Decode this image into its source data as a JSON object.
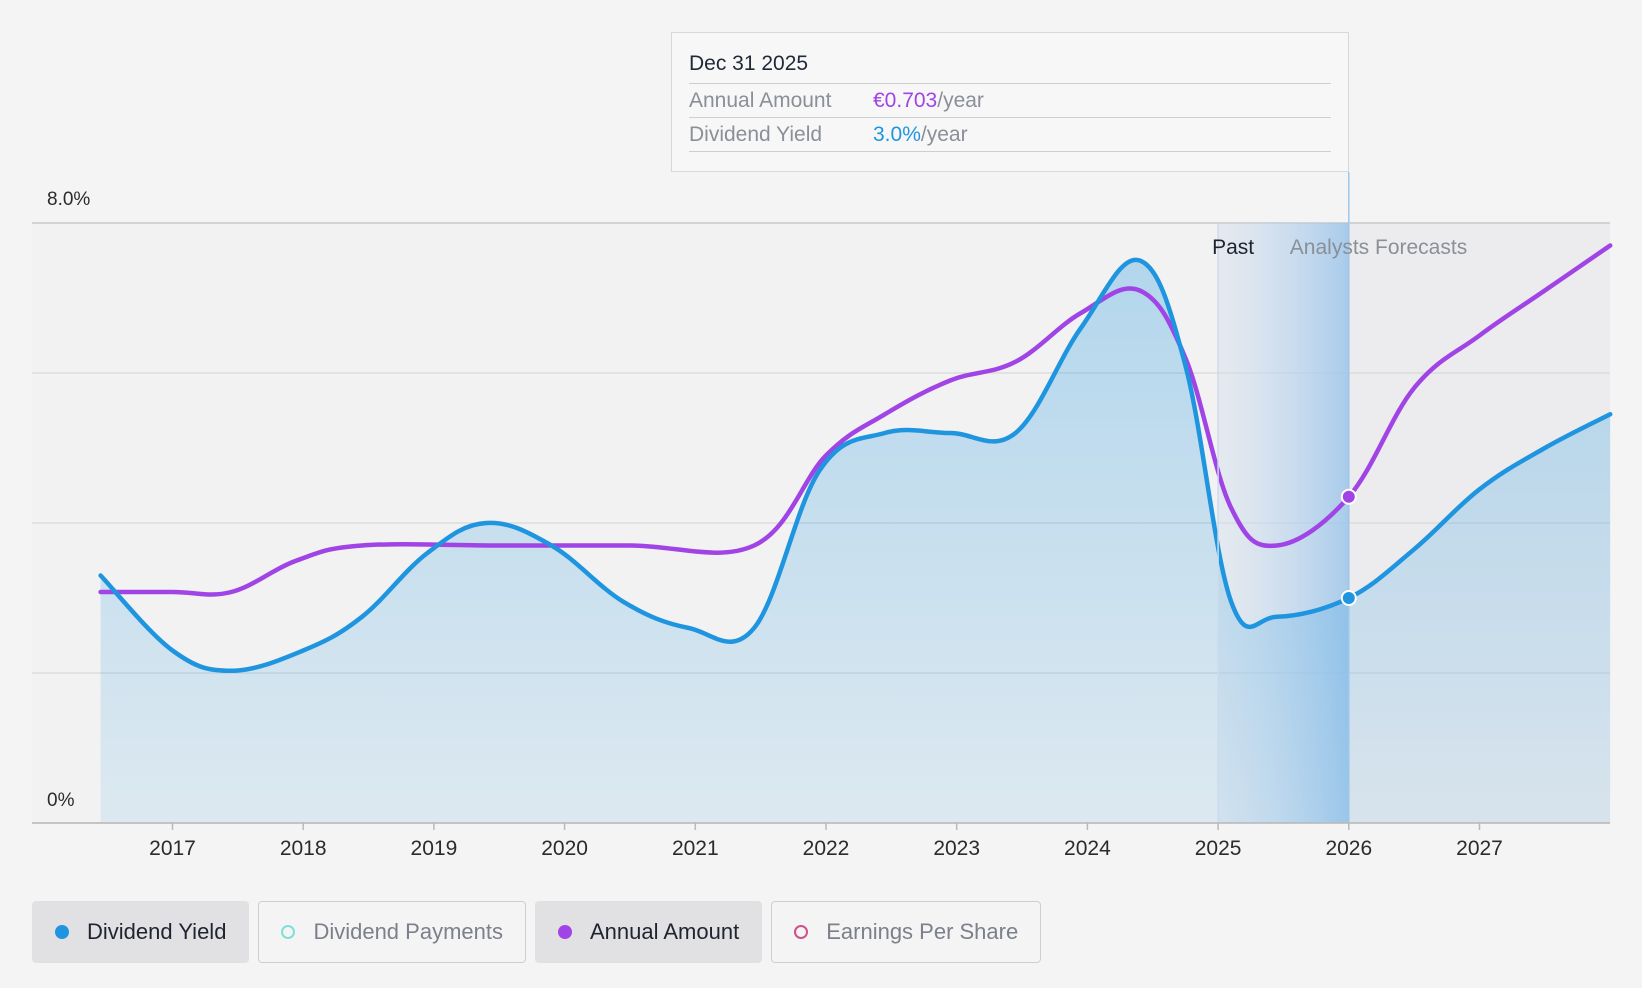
{
  "tooltip": {
    "date": "Dec 31 2025",
    "rows": [
      {
        "key": "Annual Amount",
        "value": "€0.703",
        "unit": "/year",
        "color": "#a044e6"
      },
      {
        "key": "Dividend Yield",
        "value": "3.0%",
        "unit": "/year",
        "color": "#1f95e0"
      }
    ]
  },
  "regions": {
    "past_label": "Past",
    "forecast_label": "Analysts Forecasts"
  },
  "legend": [
    {
      "label": "Dividend Yield",
      "color": "#1f95e0",
      "active": true,
      "filled": true
    },
    {
      "label": "Dividend Payments",
      "color": "#7ee0d6",
      "active": false,
      "filled": false
    },
    {
      "label": "Annual Amount",
      "color": "#a044e6",
      "active": true,
      "filled": true
    },
    {
      "label": "Earnings Per Share",
      "color": "#d0508c",
      "active": false,
      "filled": false
    }
  ],
  "chart_data": {
    "type": "line",
    "title": "",
    "xlabel": "",
    "ylabel": "",
    "y_axis_labels": [
      "8.0%",
      "0%"
    ],
    "ylim": [
      0,
      8.0
    ],
    "xlim": [
      2016.0,
      2028.0
    ],
    "x_ticks": [
      2017,
      2018,
      2019,
      2020,
      2021,
      2022,
      2023,
      2024,
      2025,
      2026,
      2027
    ],
    "grid": true,
    "past_end": 2025.0,
    "highlight_x": 2026.0,
    "series": [
      {
        "name": "Dividend Yield",
        "color": "#1f95e0",
        "filled": true,
        "points": [
          [
            2016.45,
            3.3
          ],
          [
            2017.0,
            2.3
          ],
          [
            2017.45,
            2.03
          ],
          [
            2018.0,
            2.3
          ],
          [
            2018.45,
            2.75
          ],
          [
            2018.95,
            3.6
          ],
          [
            2019.4,
            4.0
          ],
          [
            2019.9,
            3.7
          ],
          [
            2020.45,
            2.95
          ],
          [
            2020.95,
            2.6
          ],
          [
            2021.45,
            2.6
          ],
          [
            2021.95,
            4.7
          ],
          [
            2022.45,
            5.2
          ],
          [
            2022.95,
            5.2
          ],
          [
            2023.45,
            5.2
          ],
          [
            2023.95,
            6.6
          ],
          [
            2024.4,
            7.5
          ],
          [
            2024.75,
            6.1
          ],
          [
            2025.1,
            2.95
          ],
          [
            2025.45,
            2.75
          ],
          [
            2026.0,
            3.0
          ],
          [
            2026.5,
            3.65
          ],
          [
            2027.0,
            4.45
          ],
          [
            2027.5,
            5.0
          ],
          [
            2028.0,
            5.45
          ]
        ]
      },
      {
        "name": "Annual Amount",
        "color": "#a044e6",
        "filled": false,
        "points": [
          [
            2016.45,
            3.08
          ],
          [
            2017.0,
            3.08
          ],
          [
            2017.45,
            3.08
          ],
          [
            2017.95,
            3.5
          ],
          [
            2018.45,
            3.7
          ],
          [
            2019.5,
            3.7
          ],
          [
            2020.5,
            3.7
          ],
          [
            2021.45,
            3.7
          ],
          [
            2022.0,
            4.9
          ],
          [
            2022.45,
            5.45
          ],
          [
            2022.95,
            5.9
          ],
          [
            2023.45,
            6.15
          ],
          [
            2023.95,
            6.8
          ],
          [
            2024.4,
            7.1
          ],
          [
            2024.75,
            6.2
          ],
          [
            2025.1,
            4.2
          ],
          [
            2025.45,
            3.7
          ],
          [
            2026.0,
            4.35
          ],
          [
            2026.5,
            5.8
          ],
          [
            2027.0,
            6.5
          ],
          [
            2027.5,
            7.1
          ],
          [
            2028.0,
            7.7
          ]
        ],
        "marker_value": 4.35
      }
    ]
  }
}
